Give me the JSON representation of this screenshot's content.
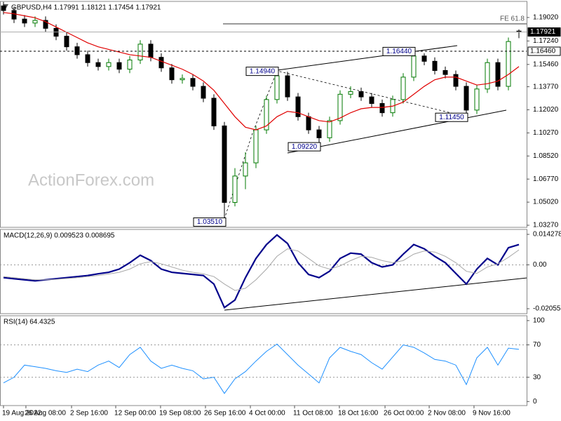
{
  "chart_data": [
    {
      "type": "candlestick",
      "title": "GBPUSD,H4  1.17991 1.18121 1.17454 1.17921",
      "watermark": "ActionForex.com",
      "open": [
        1.199,
        1.1955,
        1.189,
        1.186,
        1.188,
        1.182,
        1.176,
        1.168,
        1.162,
        1.156,
        1.153,
        1.156,
        1.151,
        1.158,
        1.17,
        1.16,
        1.152,
        1.143,
        1.144,
        1.138,
        1.129,
        1.108,
        1.05,
        1.07,
        1.08,
        1.105,
        1.128,
        1.146,
        1.13,
        1.115,
        1.105,
        1.099,
        1.112,
        1.132,
        1.134,
        1.13,
        1.125,
        1.118,
        1.128,
        1.145,
        1.161,
        1.157,
        1.15,
        1.147,
        1.138,
        1.12,
        1.136,
        1.156,
        1.138,
        1.17991
      ],
      "high": [
        1.202,
        1.1985,
        1.192,
        1.191,
        1.191,
        1.185,
        1.179,
        1.171,
        1.165,
        1.159,
        1.159,
        1.159,
        1.161,
        1.173,
        1.173,
        1.163,
        1.155,
        1.147,
        1.147,
        1.141,
        1.132,
        1.111,
        1.076,
        1.088,
        1.108,
        1.131,
        1.1494,
        1.149,
        1.133,
        1.118,
        1.108,
        1.115,
        1.135,
        1.138,
        1.137,
        1.133,
        1.128,
        1.131,
        1.148,
        1.1644,
        1.163,
        1.16,
        1.153,
        1.15,
        1.141,
        1.139,
        1.159,
        1.159,
        1.175,
        1.18121
      ],
      "low": [
        1.1925,
        1.186,
        1.183,
        1.183,
        1.179,
        1.173,
        1.165,
        1.159,
        1.153,
        1.15,
        1.15,
        1.148,
        1.148,
        1.155,
        1.157,
        1.149,
        1.14,
        1.14,
        1.135,
        1.126,
        1.105,
        1.0351,
        1.047,
        1.06,
        1.076,
        1.102,
        1.125,
        1.127,
        1.112,
        1.102,
        1.0922,
        1.096,
        1.109,
        1.129,
        1.127,
        1.122,
        1.115,
        1.115,
        1.125,
        1.142,
        1.154,
        1.147,
        1.144,
        1.135,
        1.1145,
        1.117,
        1.133,
        1.135,
        1.135,
        1.17454
      ],
      "close": [
        1.1955,
        1.189,
        1.186,
        1.188,
        1.182,
        1.176,
        1.168,
        1.162,
        1.156,
        1.153,
        1.156,
        1.151,
        1.158,
        1.17,
        1.16,
        1.152,
        1.143,
        1.144,
        1.138,
        1.129,
        1.108,
        1.05,
        1.07,
        1.08,
        1.105,
        1.128,
        1.146,
        1.13,
        1.115,
        1.105,
        1.099,
        1.112,
        1.132,
        1.134,
        1.13,
        1.125,
        1.118,
        1.128,
        1.145,
        1.161,
        1.157,
        1.15,
        1.147,
        1.138,
        1.12,
        1.136,
        1.156,
        1.138,
        1.172,
        1.17921
      ],
      "up_color": "#007a00",
      "down_color": "#000000",
      "overlay": {
        "color": "#e00000",
        "values": [
          1.194,
          1.193,
          1.1915,
          1.19,
          1.187,
          1.183,
          1.179,
          1.175,
          1.171,
          1.168,
          1.166,
          1.164,
          1.162,
          1.161,
          1.16,
          1.157,
          1.154,
          1.151,
          1.147,
          1.142,
          1.135,
          1.125,
          1.115,
          1.107,
          1.105,
          1.108,
          1.115,
          1.119,
          1.118,
          1.115,
          1.112,
          1.111,
          1.114,
          1.118,
          1.121,
          1.122,
          1.122,
          1.123,
          1.126,
          1.132,
          1.138,
          1.143,
          1.145,
          1.145,
          1.142,
          1.139,
          1.14,
          1.142,
          1.147,
          1.153
        ]
      },
      "ylim": [
        1.0311,
        1.2024
      ],
      "yticks": [
        {
          "value": 1.1902,
          "label": "1.19020"
        },
        {
          "value": 1.1724,
          "label": "1.17240"
        },
        {
          "value": 1.1546,
          "label": "1.15460"
        },
        {
          "value": 1.1377,
          "label": "1.13770"
        },
        {
          "value": 1.1202,
          "label": "1.12020"
        },
        {
          "value": 1.1027,
          "label": "1.10270"
        },
        {
          "value": 1.0852,
          "label": "1.08520"
        },
        {
          "value": 1.0677,
          "label": "1.06770"
        },
        {
          "value": 1.0502,
          "label": "1.05020"
        },
        {
          "value": 1.0327,
          "label": "1.03270"
        }
      ],
      "levels": [
        {
          "value": 1.1854,
          "label": "FE 61.8",
          "style": "fe"
        },
        {
          "value": 1.17921,
          "label": "1.17921",
          "style": "price"
        },
        {
          "value": 1.1646,
          "label": "1.16460",
          "style": "dashed"
        }
      ],
      "annotations": [
        {
          "value": 1.0351,
          "label": "1.03510",
          "x": 21
        },
        {
          "value": 1.1494,
          "label": "1.14940",
          "x": 26
        },
        {
          "value": 1.0922,
          "label": "1.09220",
          "x": 30
        },
        {
          "value": 1.1644,
          "label": "1.16440",
          "x": 39
        },
        {
          "value": 1.1145,
          "label": "1.11450",
          "x": 44
        }
      ]
    },
    {
      "type": "line",
      "title": "MACD(12,26,9) 0.009523 0.008695",
      "series": [
        {
          "color": "#00008b",
          "values": [
            -0.006,
            -0.0065,
            -0.007,
            -0.0075,
            -0.007,
            -0.0065,
            -0.006,
            -0.0055,
            -0.005,
            -0.0042,
            -0.0035,
            -0.002,
            0.001,
            0.0045,
            0.002,
            -0.002,
            -0.0035,
            -0.004,
            -0.0045,
            -0.005,
            -0.009,
            -0.02,
            -0.0165,
            -0.006,
            0.003,
            0.0095,
            0.014,
            0.01,
            0.001,
            -0.0045,
            -0.006,
            -0.003,
            0.003,
            0.0055,
            0.005,
            0.001,
            -0.001,
            0.0,
            0.005,
            0.0095,
            0.0075,
            0.004,
            0.001,
            -0.004,
            -0.009,
            -0.002,
            0.003,
            0.0,
            0.008,
            0.0095
          ]
        },
        {
          "color": "#a8a8a8",
          "values": [
            -0.0055,
            -0.006,
            -0.0065,
            -0.007,
            -0.007,
            -0.0068,
            -0.0064,
            -0.006,
            -0.0055,
            -0.005,
            -0.0043,
            -0.0035,
            -0.002,
            0.0005,
            0.0015,
            0.0005,
            -0.001,
            -0.0025,
            -0.0035,
            -0.0042,
            -0.0055,
            -0.009,
            -0.012,
            -0.011,
            -0.007,
            -0.002,
            0.004,
            0.0075,
            0.0065,
            0.003,
            -0.0005,
            -0.002,
            -0.0005,
            0.002,
            0.004,
            0.0035,
            0.002,
            0.001,
            0.002,
            0.005,
            0.0065,
            0.006,
            0.004,
            0.001,
            -0.003,
            -0.004,
            -0.001,
            0.0005,
            0.0035,
            0.007
          ]
        }
      ],
      "ylim": [
        -0.02286,
        0.01658
      ],
      "yticks": [
        0.014278,
        {
          "value": 0,
          "label": "0.00"
        },
        -0.020556
      ],
      "dotted_levels": [
        0
      ]
    },
    {
      "type": "line",
      "title": "RSI(14) 64.4325",
      "series": [
        {
          "color": "#1e90ff",
          "values": [
            23,
            30,
            45,
            43,
            41,
            38,
            36,
            40,
            37,
            45,
            50,
            42,
            58,
            67,
            50,
            41,
            45,
            41,
            38,
            28,
            30,
            10,
            28,
            37,
            50,
            62,
            71,
            58,
            45,
            34,
            23,
            54,
            67,
            62,
            58,
            48,
            40,
            55,
            70,
            67,
            60,
            52,
            50,
            45,
            21,
            54,
            67,
            45,
            66,
            64.4325
          ]
        }
      ],
      "ylim": [
        -5,
        106
      ],
      "yticks": [
        100,
        70,
        30,
        0
      ],
      "dotted_levels": [
        70,
        30
      ],
      "xticks": [
        {
          "value": 0,
          "label": "19 Aug 2022"
        },
        {
          "value": 2.13,
          "label": "26 Aug 08:00"
        },
        {
          "value": 6.47,
          "label": "2 Sep 16:00"
        },
        {
          "value": 10.67,
          "label": "12 Sep 00:00"
        },
        {
          "value": 14.93,
          "label": "19 Sep 08:00"
        },
        {
          "value": 19.2,
          "label": "26 Sep 16:00"
        },
        {
          "value": 23.47,
          "label": "4 Oct 00:00"
        },
        {
          "value": 27.67,
          "label": "11 Oct 08:00"
        },
        {
          "value": 31.93,
          "label": "18 Oct 16:00"
        },
        {
          "value": 36.27,
          "label": "26 Oct 00:00"
        },
        {
          "value": 40.47,
          "label": "2 Nov 08:00"
        },
        {
          "value": 44.73,
          "label": "9 Nov 16:00"
        }
      ]
    }
  ]
}
